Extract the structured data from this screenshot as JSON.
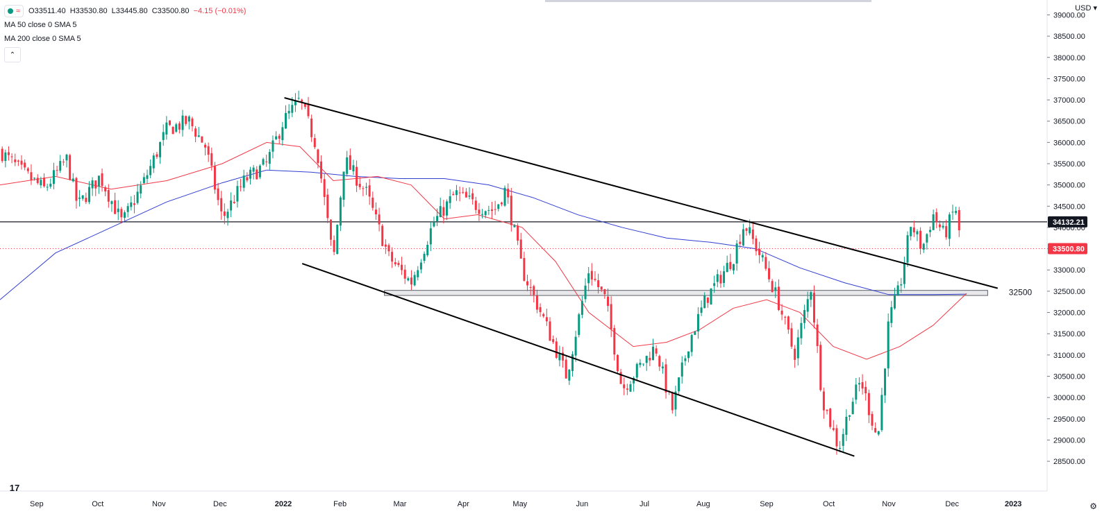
{
  "legend": {
    "open": "O33511.40",
    "high": "H33530.80",
    "low": "L33445.80",
    "close": "C33500.80",
    "change": "−4.15 (−0.01%)",
    "ma50": "MA 50 close 0 SMA 5",
    "ma200": "MA 200 close 0 SMA 5",
    "collapse_icon": "chevron-up-icon"
  },
  "currency": "USD",
  "y_axis": {
    "min": 28000,
    "max": 39000,
    "ticks": [
      "28500.00",
      "29000.00",
      "29500.00",
      "30000.00",
      "30500.00",
      "31000.00",
      "31500.00",
      "32000.00",
      "32500.00",
      "33000.00",
      "33500.00",
      "34000.00",
      "34500.00",
      "35000.00",
      "35500.00",
      "36000.00",
      "36500.00",
      "37000.00",
      "37500.00",
      "38000.00",
      "38500.00",
      "39000.00"
    ],
    "tick_values": [
      28500,
      29000,
      29500,
      30000,
      30500,
      31000,
      31500,
      32000,
      32500,
      33000,
      33500,
      34000,
      34500,
      35000,
      35500,
      36000,
      36500,
      37000,
      37500,
      38000,
      38500,
      39000
    ]
  },
  "x_axis": {
    "labels": [
      "Sep",
      "Oct",
      "Nov",
      "Dec",
      "2022",
      "Feb",
      "Mar",
      "Apr",
      "May",
      "Jun",
      "Jul",
      "Aug",
      "Sep",
      "Oct",
      "Nov",
      "Dec",
      "2023"
    ],
    "bold": [
      "2022",
      "2023"
    ],
    "positions": [
      0.033,
      0.088,
      0.143,
      0.198,
      0.255,
      0.306,
      0.36,
      0.417,
      0.468,
      0.524,
      0.58,
      0.633,
      0.69,
      0.746,
      0.8,
      0.857,
      0.912
    ]
  },
  "horizontal_line": {
    "value": 34132.21,
    "label": "34132.21",
    "color": "#131722"
  },
  "last_price": {
    "value": 33500.8,
    "label": "33500.80",
    "color": "#f23645"
  },
  "support_zone": {
    "low": 32400,
    "high": 32520,
    "label": "32500"
  },
  "trendlines": {
    "upper": [
      [
        0.256,
        37050
      ],
      [
        0.898,
        32570
      ]
    ],
    "lower": [
      [
        0.272,
        33150
      ],
      [
        0.769,
        28620
      ]
    ]
  },
  "chart_data": {
    "type": "candlestick",
    "title": "",
    "series_colors": {
      "up": "#089981",
      "down": "#f23645",
      "ma50": "#f23645",
      "ma200": "#2f3dd1"
    },
    "ma50": {
      "x": [
        0.0,
        0.05,
        0.1,
        0.15,
        0.2,
        0.24,
        0.27,
        0.3,
        0.34,
        0.37,
        0.4,
        0.43,
        0.47,
        0.5,
        0.53,
        0.57,
        0.6,
        0.63,
        0.66,
        0.69,
        0.72,
        0.75,
        0.78,
        0.81,
        0.84,
        0.87
      ],
      "y": [
        35000,
        35200,
        34900,
        35100,
        35500,
        36000,
        35900,
        35100,
        35200,
        35000,
        34200,
        34300,
        34000,
        33200,
        32000,
        31200,
        31300,
        31600,
        32100,
        32300,
        32000,
        31200,
        30900,
        31200,
        31700,
        32450
      ]
    },
    "ma200": {
      "x": [
        0.0,
        0.05,
        0.1,
        0.15,
        0.2,
        0.24,
        0.28,
        0.32,
        0.36,
        0.4,
        0.44,
        0.48,
        0.52,
        0.56,
        0.6,
        0.64,
        0.68,
        0.72,
        0.76,
        0.8,
        0.84,
        0.87
      ],
      "y": [
        32300,
        33400,
        34000,
        34600,
        35050,
        35350,
        35300,
        35200,
        35150,
        35150,
        35000,
        34700,
        34300,
        34000,
        33750,
        33650,
        33500,
        33050,
        32700,
        32420,
        32420,
        32430
      ]
    },
    "candles_close_keypoints": {
      "x": [
        0.0,
        0.02,
        0.04,
        0.06,
        0.07,
        0.09,
        0.11,
        0.13,
        0.15,
        0.17,
        0.185,
        0.2,
        0.22,
        0.24,
        0.255,
        0.27,
        0.285,
        0.3,
        0.31,
        0.33,
        0.35,
        0.37,
        0.39,
        0.41,
        0.43,
        0.445,
        0.455,
        0.47,
        0.49,
        0.51,
        0.53,
        0.545,
        0.56,
        0.575,
        0.59,
        0.605,
        0.62,
        0.635,
        0.65,
        0.66,
        0.67,
        0.685,
        0.7,
        0.715,
        0.73,
        0.74,
        0.755,
        0.765,
        0.775,
        0.79,
        0.8,
        0.81,
        0.82,
        0.83,
        0.84,
        0.85,
        0.86,
        0.865
      ],
      "y": [
        35800,
        35300,
        34900,
        35600,
        34500,
        35200,
        34100,
        35100,
        36300,
        36500,
        35900,
        34200,
        35100,
        35500,
        36500,
        37000,
        35900,
        33200,
        35600,
        34800,
        33300,
        32700,
        34100,
        34800,
        34500,
        34400,
        34900,
        33000,
        31800,
        30500,
        33000,
        32300,
        30200,
        30700,
        31200,
        29700,
        31300,
        32300,
        32900,
        33300,
        34100,
        33300,
        32300,
        31000,
        32600,
        30000,
        28800,
        29800,
        30400,
        29000,
        31800,
        32600,
        34100,
        33500,
        34300,
        33800,
        34500,
        33500
      ]
    }
  }
}
